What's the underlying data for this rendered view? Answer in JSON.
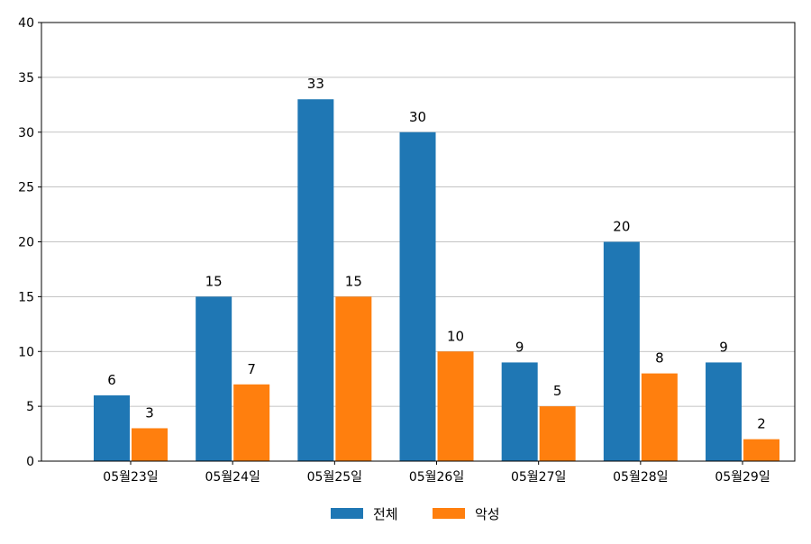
{
  "chart_data": {
    "type": "bar",
    "categories": [
      "05월23일",
      "05월24일",
      "05월25일",
      "05월26일",
      "05월27일",
      "05월28일",
      "05월29일"
    ],
    "series": [
      {
        "name": "전체",
        "values": [
          6,
          15,
          33,
          30,
          9,
          20,
          9
        ],
        "color": "#1f77b4"
      },
      {
        "name": "악성",
        "values": [
          3,
          7,
          15,
          10,
          5,
          8,
          2
        ],
        "color": "#ff7f0e"
      }
    ],
    "ylim": [
      0,
      40
    ],
    "yticks": [
      0,
      5,
      10,
      15,
      20,
      25,
      30,
      35,
      40
    ],
    "grid": "horizontal",
    "legend": "bottom-center",
    "data_labels": true
  }
}
